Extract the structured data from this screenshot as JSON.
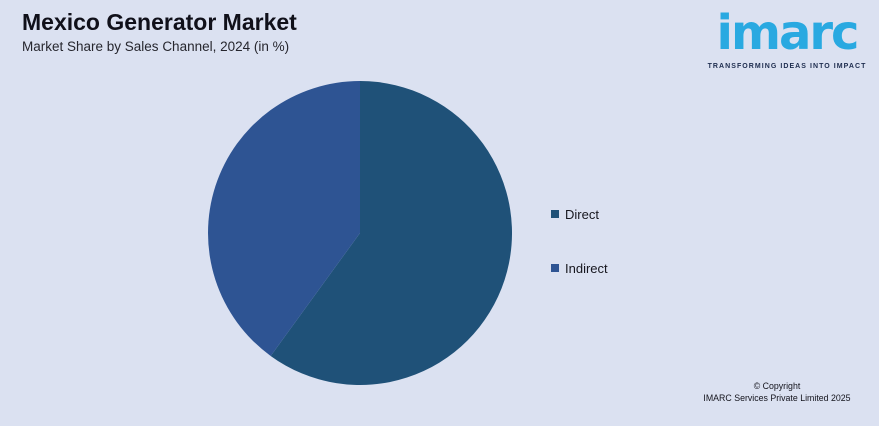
{
  "page": {
    "background": "#dbe1f1"
  },
  "header": {
    "title": "Mexico Generator Market",
    "subtitle": "Market Share by Sales Channel, 2024 (in %)"
  },
  "logo": {
    "wordmark": "imarc",
    "tagline": "TRANSFORMING IDEAS INTO IMPACT",
    "brand_color": "#29a9e1",
    "tagline_color": "#1d2c4e"
  },
  "chart_data": {
    "type": "pie",
    "title": "Mexico Generator Market",
    "subtitle": "Market Share by Sales Channel, 2024 (in %)",
    "categories": [
      "Direct",
      "Indirect"
    ],
    "values": [
      60,
      40
    ],
    "colors": [
      "#1f5178",
      "#2e5493"
    ],
    "start_angle_deg": 0,
    "direction": "clockwise",
    "legend_position": "right",
    "data_labels_shown": false
  },
  "legend": {
    "items": [
      {
        "label": "Direct",
        "color": "#1f5178"
      },
      {
        "label": "Indirect",
        "color": "#2e5493"
      }
    ]
  },
  "footer": {
    "copyright_line1": "© Copyright",
    "copyright_line2": "IMARC Services Private Limited 2025"
  }
}
